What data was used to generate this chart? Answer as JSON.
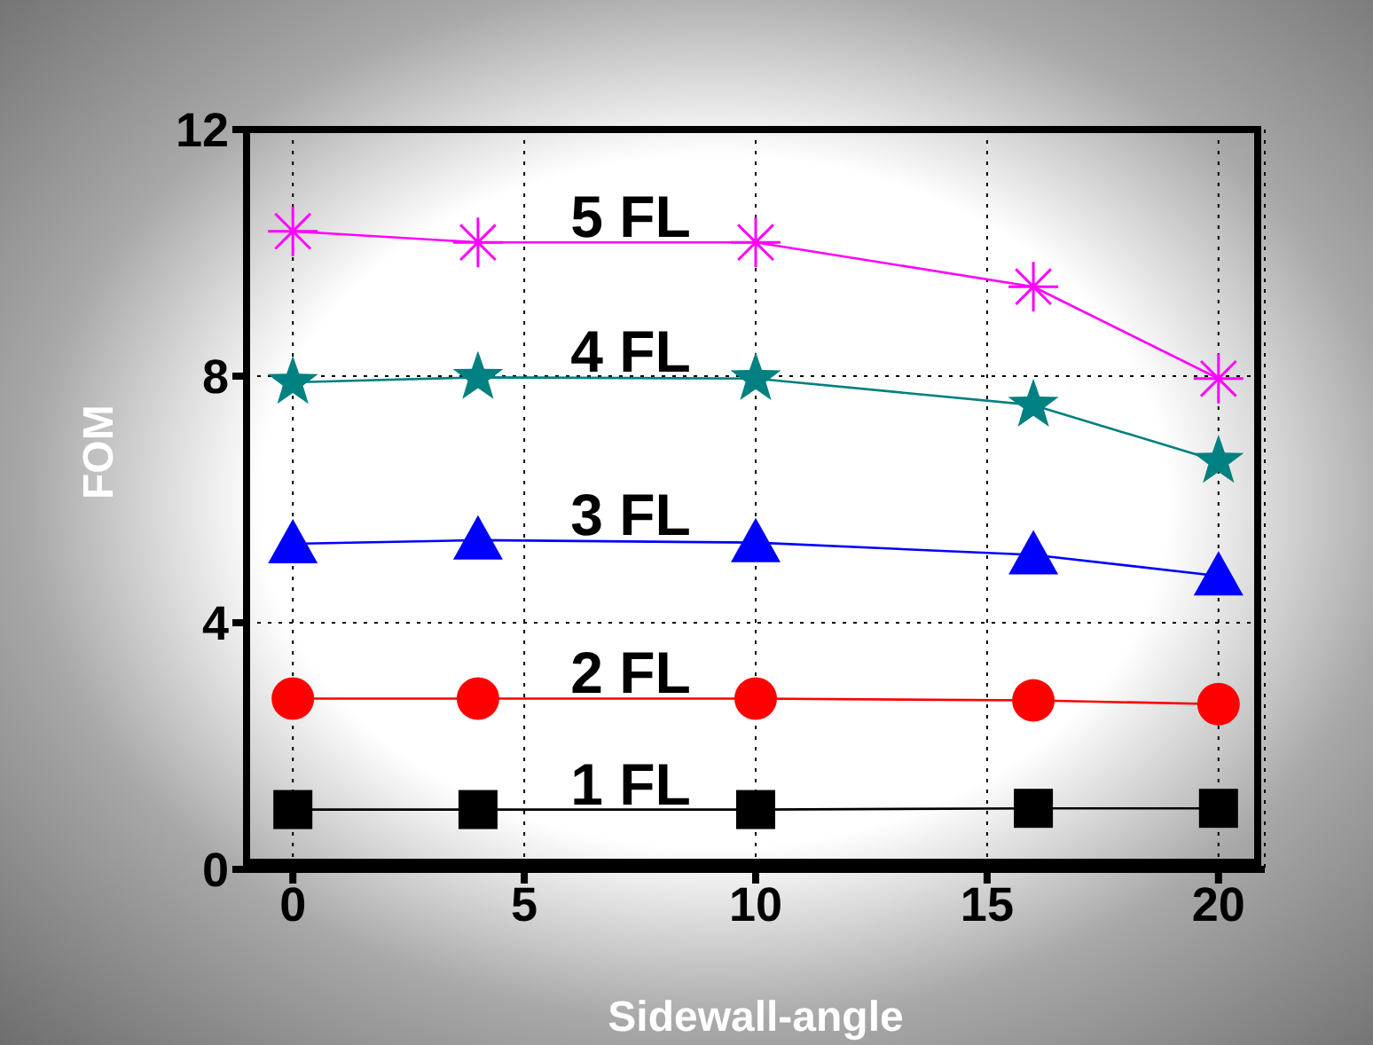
{
  "chart_data": {
    "type": "line",
    "xlabel": "Sidewall-angle",
    "ylabel": "FOM",
    "x": [
      0,
      4,
      10,
      16,
      20
    ],
    "xlim": [
      -1,
      21
    ],
    "xticks": [
      0,
      5,
      10,
      15,
      20
    ],
    "ylim": [
      0,
      12
    ],
    "yticks": [
      0,
      4,
      8,
      12
    ],
    "grid": true,
    "line_style": "solid",
    "series": [
      {
        "name": "1 FL",
        "color": "#000000",
        "marker": "square",
        "values": [
          0.97,
          0.97,
          0.97,
          0.99,
          0.99
        ]
      },
      {
        "name": "2 FL",
        "color": "#ff0000",
        "marker": "circle",
        "values": [
          2.77,
          2.77,
          2.77,
          2.74,
          2.68
        ]
      },
      {
        "name": "3 FL",
        "color": "#0000ff",
        "marker": "triangle",
        "values": [
          5.28,
          5.34,
          5.3,
          5.1,
          4.76
        ]
      },
      {
        "name": "4 FL",
        "color": "#008080",
        "marker": "star",
        "values": [
          7.9,
          7.98,
          7.96,
          7.53,
          6.62
        ]
      },
      {
        "name": "5 FL",
        "color": "#ff00ff",
        "marker": "cross",
        "values": [
          10.35,
          10.17,
          10.17,
          9.45,
          7.96
        ]
      }
    ]
  }
}
